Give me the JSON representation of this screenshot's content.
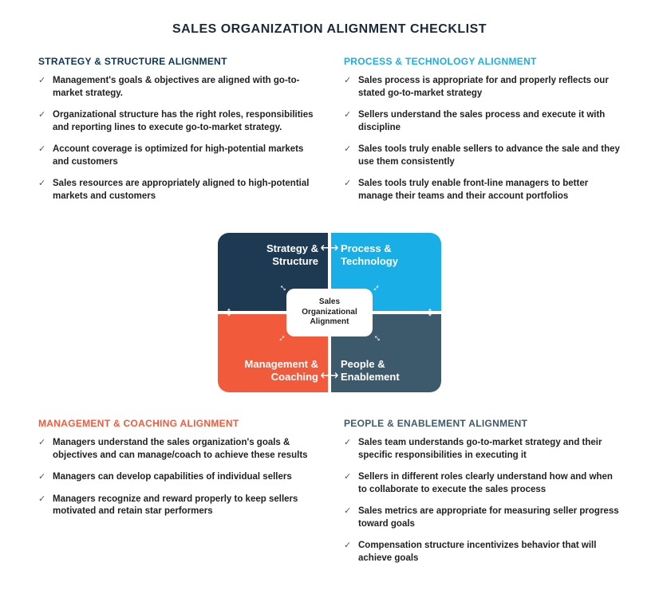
{
  "title": "SALES ORGANIZATION ALIGNMENT CHECKLIST",
  "colors": {
    "darkNavy": "#1e3a52",
    "brightBlue": "#19aee5",
    "orange": "#f15a3b",
    "slate": "#3d5a6c",
    "headingDark": "#0d3556"
  },
  "sections": {
    "strategy": {
      "heading": "STRATEGY & STRUCTURE ALIGNMENT",
      "headingColor": "#0d3556",
      "items": [
        "Management's goals & objectives are aligned with go-to-market strategy.",
        "Organizational structure has the right roles, responsibilities and reporting lines to execute go-to-market strategy.",
        "Account coverage is optimized for high-potential markets and customers",
        "Sales resources are appropriately aligned to high-potential markets and customers"
      ]
    },
    "process": {
      "heading": "PROCESS & TECHNOLOGY ALIGNMENT",
      "headingColor": "#19aee5",
      "items": [
        "Sales process is appropriate for and properly reflects our stated go-to-market strategy",
        "Sellers understand the sales process and execute it with discipline",
        "Sales tools truly enable sellers to advance the sale and they use them consistently",
        "Sales tools truly enable front-line managers to better manage their teams and their account portfolios"
      ]
    },
    "management": {
      "heading": "MANAGEMENT & COACHING ALIGNMENT",
      "headingColor": "#f15a3b",
      "items": [
        "Managers understand the sales organization's goals & objectives and can manage/coach to achieve these results",
        "Managers can develop capabilities of individual sellers",
        "Managers recognize and reward properly to keep sellers motivated and retain star performers"
      ]
    },
    "people": {
      "heading": "PEOPLE & ENABLEMENT ALIGNMENT",
      "headingColor": "#3d5a6c",
      "items": [
        "Sales team understands go-to-market strategy and their specific responsibilities in executing it",
        "Sellers in different roles clearly understand how and when to collaborate to execute the sales process",
        "Sales metrics are appropriate for measuring seller progress toward goals",
        "Compensation structure incentivizes behavior that will achieve goals"
      ]
    }
  },
  "diagram": {
    "centerLabel": "Sales Organizational Alignment",
    "quadrants": {
      "tl": {
        "label": "Strategy & Structure",
        "bg": "#1e3a52"
      },
      "tr": {
        "label": "Process & Technology",
        "bg": "#19aee5"
      },
      "bl": {
        "label": "Management & Coaching",
        "bg": "#f15a3b"
      },
      "br": {
        "label": "People & Enablement",
        "bg": "#3d5a6c"
      }
    },
    "arrowGlyphH": "⟷",
    "arrowGlyphV": "↕"
  }
}
